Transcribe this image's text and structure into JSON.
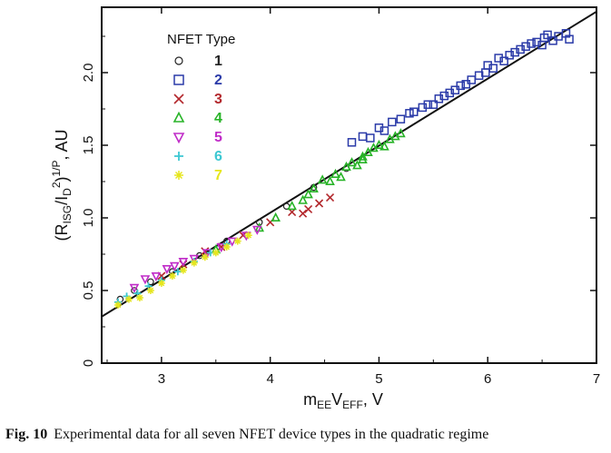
{
  "chart_data": {
    "type": "scatter",
    "xlabel": {
      "base": "m",
      "sub1": "EE",
      "mid": "V",
      "sub2": "EFF",
      "tail": ", V"
    },
    "ylabel": {
      "open": "(R",
      "sub1": "ISG",
      "mid": "/I",
      "sub2": "D",
      "sup1": "2",
      "close": ")",
      "sup2": "1/P",
      "tail": ", AU"
    },
    "xlim": [
      2.45,
      7
    ],
    "ylim": [
      0,
      2.45
    ],
    "x_ticks": [
      3,
      4,
      5,
      6,
      7
    ],
    "x_tick_labels": [
      "3",
      "4",
      "5",
      "6",
      "7"
    ],
    "y_ticks": [
      0,
      0.5,
      1.0,
      1.5,
      2.0
    ],
    "y_tick_labels": [
      "0",
      "0.5",
      "1.0",
      "1.5",
      "2.0"
    ],
    "legend_title": "NFET Type",
    "legend_placement": "top-left",
    "fit_line": {
      "x": [
        2.45,
        7
      ],
      "y": [
        0.32,
        2.42
      ],
      "color": "#111111"
    },
    "series": [
      {
        "name": "1",
        "marker": "circle",
        "color": "#222222",
        "points": [
          [
            2.62,
            0.44
          ],
          [
            2.75,
            0.5
          ],
          [
            2.9,
            0.56
          ],
          [
            3.1,
            0.63
          ],
          [
            3.35,
            0.74
          ],
          [
            3.6,
            0.84
          ],
          [
            3.9,
            0.97
          ],
          [
            4.15,
            1.08
          ],
          [
            4.4,
            1.21
          ],
          [
            4.7,
            1.34
          ]
        ]
      },
      {
        "name": "2",
        "marker": "square",
        "color": "#2a3aa8",
        "points": [
          [
            4.75,
            1.52
          ],
          [
            4.85,
            1.56
          ],
          [
            4.92,
            1.55
          ],
          [
            5.0,
            1.62
          ],
          [
            5.05,
            1.6
          ],
          [
            5.12,
            1.66
          ],
          [
            5.2,
            1.68
          ],
          [
            5.28,
            1.72
          ],
          [
            5.32,
            1.73
          ],
          [
            5.4,
            1.76
          ],
          [
            5.45,
            1.78
          ],
          [
            5.5,
            1.78
          ],
          [
            5.55,
            1.82
          ],
          [
            5.6,
            1.84
          ],
          [
            5.65,
            1.86
          ],
          [
            5.7,
            1.88
          ],
          [
            5.75,
            1.91
          ],
          [
            5.8,
            1.92
          ],
          [
            5.85,
            1.95
          ],
          [
            5.92,
            1.98
          ],
          [
            5.98,
            2.0
          ],
          [
            6.0,
            2.05
          ],
          [
            6.05,
            2.03
          ],
          [
            6.1,
            2.1
          ],
          [
            6.15,
            2.08
          ],
          [
            6.2,
            2.12
          ],
          [
            6.25,
            2.14
          ],
          [
            6.3,
            2.16
          ],
          [
            6.35,
            2.18
          ],
          [
            6.4,
            2.2
          ],
          [
            6.45,
            2.21
          ],
          [
            6.5,
            2.19
          ],
          [
            6.52,
            2.24
          ],
          [
            6.55,
            2.26
          ],
          [
            6.6,
            2.22
          ],
          [
            6.65,
            2.25
          ],
          [
            6.72,
            2.27
          ],
          [
            6.75,
            2.23
          ]
        ]
      },
      {
        "name": "3",
        "marker": "x",
        "color": "#b3282d",
        "points": [
          [
            3.0,
            0.6
          ],
          [
            3.2,
            0.68
          ],
          [
            3.4,
            0.77
          ],
          [
            3.55,
            0.8
          ],
          [
            3.75,
            0.88
          ],
          [
            4.0,
            0.97
          ],
          [
            4.2,
            1.04
          ],
          [
            4.35,
            1.06
          ],
          [
            4.45,
            1.1
          ],
          [
            4.55,
            1.14
          ],
          [
            4.3,
            1.03
          ]
        ]
      },
      {
        "name": "4",
        "marker": "triangle-up",
        "color": "#28b428",
        "points": [
          [
            3.5,
            0.78
          ],
          [
            3.9,
            0.93
          ],
          [
            4.05,
            1.0
          ],
          [
            4.2,
            1.08
          ],
          [
            4.3,
            1.12
          ],
          [
            4.4,
            1.2
          ],
          [
            4.48,
            1.26
          ],
          [
            4.55,
            1.25
          ],
          [
            4.6,
            1.3
          ],
          [
            4.65,
            1.28
          ],
          [
            4.7,
            1.35
          ],
          [
            4.75,
            1.38
          ],
          [
            4.8,
            1.36
          ],
          [
            4.85,
            1.42
          ],
          [
            4.9,
            1.45
          ],
          [
            4.95,
            1.48
          ],
          [
            5.0,
            1.5
          ],
          [
            5.05,
            1.49
          ],
          [
            5.1,
            1.54
          ],
          [
            5.15,
            1.56
          ],
          [
            5.2,
            1.58
          ],
          [
            4.35,
            1.16
          ],
          [
            4.85,
            1.4
          ]
        ]
      },
      {
        "name": "5",
        "marker": "triangle-down",
        "color": "#c02bc8",
        "points": [
          [
            2.75,
            0.52
          ],
          [
            2.85,
            0.58
          ],
          [
            2.95,
            0.6
          ],
          [
            3.05,
            0.65
          ],
          [
            3.12,
            0.67
          ],
          [
            3.2,
            0.7
          ],
          [
            3.3,
            0.72
          ],
          [
            3.42,
            0.76
          ],
          [
            3.55,
            0.8
          ],
          [
            3.65,
            0.84
          ],
          [
            3.78,
            0.88
          ],
          [
            3.88,
            0.92
          ]
        ]
      },
      {
        "name": "6",
        "marker": "plus",
        "color": "#3cc8d2",
        "points": [
          [
            2.6,
            0.42
          ],
          [
            2.68,
            0.46
          ],
          [
            2.78,
            0.48
          ],
          [
            2.88,
            0.53
          ],
          [
            3.0,
            0.57
          ],
          [
            3.15,
            0.63
          ],
          [
            3.3,
            0.7
          ],
          [
            3.45,
            0.76
          ],
          [
            3.6,
            0.82
          ]
        ]
      },
      {
        "name": "7",
        "marker": "asterisk",
        "color": "#e6e61e",
        "points": [
          [
            2.6,
            0.4
          ],
          [
            2.7,
            0.44
          ],
          [
            2.8,
            0.45
          ],
          [
            2.9,
            0.5
          ],
          [
            3.0,
            0.55
          ],
          [
            3.1,
            0.6
          ],
          [
            3.2,
            0.64
          ],
          [
            3.3,
            0.69
          ],
          [
            3.4,
            0.73
          ],
          [
            3.5,
            0.76
          ],
          [
            3.6,
            0.8
          ],
          [
            3.7,
            0.84
          ],
          [
            3.8,
            0.88
          ]
        ]
      }
    ]
  },
  "caption": {
    "label": "Fig. 10",
    "text": "Experimental data for all seven NFET device types in the quadratic regime"
  }
}
